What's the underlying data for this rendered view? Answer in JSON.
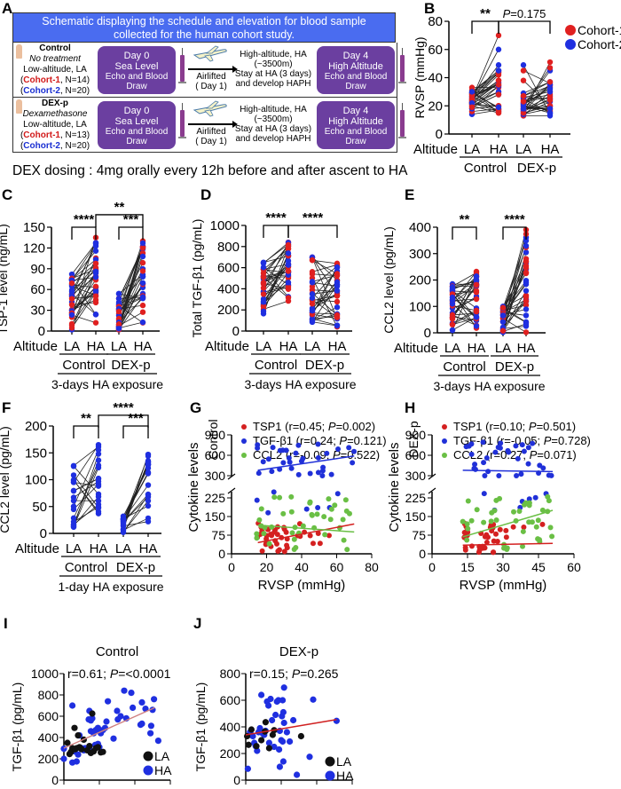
{
  "panel_labels": [
    "A",
    "B",
    "C",
    "D",
    "E",
    "F",
    "G",
    "H",
    "I",
    "J"
  ],
  "schematic": {
    "title_line1": "Schematic displaying the schedule and elevation for blood sample",
    "title_line2": "collected for the human cohort study.",
    "rows": [
      {
        "group": "Control",
        "treatment": "No treatment",
        "location": "Low-altitude, LA",
        "cohort1_label": "Cohort-1",
        "cohort1_n": ", N=14)",
        "cohort2_label": "Cohort-2",
        "cohort2_n": ", N=20)"
      },
      {
        "group": "DEX-p",
        "treatment": "Dexamethasone",
        "location": "Low-altitude, LA",
        "cohort1_label": "Cohort-1",
        "cohort1_n": ", N=13)",
        "cohort2_label": "Cohort-2",
        "cohort2_n": ", N=20)"
      }
    ],
    "box1": {
      "l1": "Day 0",
      "l2": "Sea Level",
      "l3": "Echo and Blood",
      "l4": "Draw"
    },
    "transport": {
      "l1": "Airlifted",
      "l2": "( Day 1)"
    },
    "ha": {
      "l1": "High-altitude, HA",
      "l2": "(~3500m)",
      "l3": "Stay at HA (3 days)",
      "l4": "and develop  HAPH"
    },
    "box2": {
      "l1": "Day 4",
      "l2": "High Altitude",
      "l3": "Echo and Blood",
      "l4": "Draw"
    },
    "dex_dosing": "DEX dosing : 4mg orally every 12h before and after ascent to HA",
    "colors": {
      "banner": "#4a6cf0",
      "box": "#6b3fa0",
      "cohort1": "#d21a1a",
      "cohort2": "#1a2fd2"
    }
  },
  "chart_data": [
    {
      "panel": "B",
      "type": "scatter-paired",
      "ylabel": "RVSP (mmHg)",
      "ylim": [
        0,
        80
      ],
      "yticks": [
        0,
        20,
        40,
        60,
        80
      ],
      "xlabel_prefix": "Altitude",
      "categories": [
        "LA",
        "HA",
        "LA",
        "HA"
      ],
      "groups": [
        "Control",
        "DEX-p"
      ],
      "footer": "",
      "legend": [
        {
          "name": "Cohort-1",
          "color": "#e02020"
        },
        {
          "name": "Cohort-2",
          "color": "#1f2fe0"
        }
      ],
      "annotations": [
        {
          "text": "**",
          "from": 0,
          "to": 1,
          "level": 80
        },
        {
          "text": "P=0.175",
          "from": 1,
          "to": 3,
          "level": 80,
          "italic_prefix": "P"
        }
      ],
      "pairs_control": [
        [
          14,
          17
        ],
        [
          16,
          18
        ],
        [
          18,
          20
        ],
        [
          19,
          28
        ],
        [
          20,
          30
        ],
        [
          21,
          34
        ],
        [
          22,
          37
        ],
        [
          23,
          38
        ],
        [
          24,
          44
        ],
        [
          25,
          60
        ],
        [
          25,
          70
        ],
        [
          22,
          36
        ],
        [
          27,
          16
        ],
        [
          28,
          44
        ],
        [
          30,
          18
        ],
        [
          29,
          45
        ],
        [
          33,
          33
        ],
        [
          26,
          35
        ],
        [
          24,
          49
        ],
        [
          22,
          16
        ],
        [
          21,
          20
        ],
        [
          18,
          34
        ],
        [
          20,
          15
        ],
        [
          24,
          42
        ],
        [
          26,
          36
        ],
        [
          27,
          43
        ],
        [
          23,
          17
        ],
        [
          29,
          19
        ],
        [
          31,
          15
        ],
        [
          25,
          38
        ],
        [
          22,
          30
        ],
        [
          19,
          28
        ],
        [
          28,
          35
        ],
        [
          30,
          45
        ]
      ],
      "pairs_dex": [
        [
          13,
          13
        ],
        [
          14,
          18
        ],
        [
          15,
          20
        ],
        [
          16,
          25
        ],
        [
          17,
          27
        ],
        [
          18,
          35
        ],
        [
          19,
          45
        ],
        [
          20,
          47
        ],
        [
          21,
          33
        ],
        [
          22,
          16
        ],
        [
          25,
          15
        ],
        [
          13,
          30
        ],
        [
          14,
          23
        ],
        [
          45,
          36
        ],
        [
          49,
          14
        ],
        [
          38,
          20
        ],
        [
          29,
          37
        ],
        [
          27,
          34
        ],
        [
          26,
          25
        ],
        [
          20,
          17
        ],
        [
          18,
          19
        ],
        [
          17,
          24
        ],
        [
          16,
          35
        ],
        [
          15,
          51
        ],
        [
          22,
          35
        ],
        [
          24,
          28
        ],
        [
          26,
          30
        ],
        [
          19,
          20
        ],
        [
          20,
          15
        ],
        [
          27,
          37
        ],
        [
          21,
          32
        ],
        [
          23,
          26
        ],
        [
          18,
          18
        ]
      ]
    },
    {
      "panel": "C",
      "type": "scatter-paired",
      "ylabel": "TSP-1 level (ng/mL)",
      "ylim": [
        0,
        150
      ],
      "yticks": [
        0,
        30,
        60,
        90,
        120,
        150
      ],
      "xlabel_prefix": "Altitude",
      "categories": [
        "LA",
        "HA",
        "LA",
        "HA"
      ],
      "groups": [
        "Control",
        "DEX-p"
      ],
      "footer": "3-days HA exposure",
      "annotations": [
        {
          "text": "****",
          "from": 0,
          "to": 1,
          "level": 150
        },
        {
          "text": "***",
          "from": 2,
          "to": 3,
          "level": 150
        },
        {
          "text": "**",
          "from": 1,
          "to": 3,
          "level": 168
        }
      ],
      "n_control": 34,
      "n_dex": 33,
      "la_control_range": [
        2,
        82
      ],
      "ha_control_range": [
        12,
        135
      ],
      "la_dex_range": [
        2,
        54
      ],
      "ha_dex_range": [
        12,
        130
      ]
    },
    {
      "panel": "D",
      "type": "scatter-paired",
      "ylabel": "Total TGF-β1 (pg/mL)",
      "ylim": [
        0,
        1000
      ],
      "yticks": [
        0,
        200,
        400,
        600,
        800,
        1000
      ],
      "xlabel_prefix": "Altitude",
      "categories": [
        "LA",
        "HA",
        "LA",
        "HA"
      ],
      "groups": [
        "Control",
        "DEX-p"
      ],
      "footer": "3-days HA exposure",
      "annotations": [
        {
          "text": "****",
          "from": 0,
          "to": 1,
          "level": 1000
        },
        {
          "text": "****",
          "from": 1,
          "to": 3,
          "level": 1000
        }
      ],
      "n_control": 34,
      "n_dex": 33,
      "la_control_range": [
        165,
        650
      ],
      "ha_control_range": [
        285,
        840
      ],
      "la_dex_range": [
        85,
        700
      ],
      "ha_dex_range": [
        40,
        640
      ]
    },
    {
      "panel": "E",
      "type": "scatter-paired",
      "ylabel": "CCL2 level (pg/mL)",
      "ylim": [
        0,
        400
      ],
      "yticks": [
        0,
        100,
        200,
        300,
        400
      ],
      "xlabel_prefix": "Altitude",
      "categories": [
        "LA",
        "HA",
        "LA",
        "HA"
      ],
      "groups": [
        "Control",
        "DEX-p"
      ],
      "footer": "3-days HA exposure",
      "annotations": [
        {
          "text": "**",
          "from": 0,
          "to": 1,
          "level": 400
        },
        {
          "text": "****",
          "from": 2,
          "to": 3,
          "level": 400
        }
      ],
      "n_control": 34,
      "n_dex": 33,
      "la_control_range": [
        10,
        185
      ],
      "ha_control_range": [
        18,
        232
      ],
      "la_dex_range": [
        2,
        100
      ],
      "ha_dex_range": [
        2,
        390
      ]
    },
    {
      "panel": "F",
      "type": "scatter-paired",
      "ylabel": "CCL2 level (pg/mL)",
      "ylim": [
        0,
        200
      ],
      "yticks": [
        0,
        50,
        100,
        150,
        200
      ],
      "xlabel_prefix": "Altitude",
      "categories": [
        "LA",
        "HA",
        "LA",
        "HA"
      ],
      "groups": [
        "Control",
        "DEX-p"
      ],
      "footer": "1-day HA exposure",
      "annotations": [
        {
          "text": "**",
          "from": 0,
          "to": 1,
          "level": 200
        },
        {
          "text": "***",
          "from": 2,
          "to": 3,
          "level": 200
        },
        {
          "text": "****",
          "from": 1,
          "to": 3,
          "level": 220
        }
      ],
      "n_control": 20,
      "n_dex": 20,
      "single_color": "#1f2fe0",
      "la_control_range": [
        12,
        126
      ],
      "ha_control_range": [
        37,
        165
      ],
      "la_dex_range": [
        2,
        32
      ],
      "ha_dex_range": [
        22,
        147
      ]
    },
    {
      "panel": "G",
      "type": "scatter-broken-axis",
      "side_label": "Control",
      "ylabel": "Cytokine levels",
      "xlabel": "RVSP (mmHg)",
      "xlim": [
        0,
        80
      ],
      "xticks": [
        0,
        20,
        40,
        60,
        80
      ],
      "yticks_low": [
        0,
        75,
        150,
        225
      ],
      "yticks_high": [
        300,
        600,
        900
      ],
      "series": [
        {
          "name": "TSP1",
          "r": "0.45",
          "p": "0.002",
          "color": "#d42020",
          "fit": [
            [
              15,
              45
            ],
            [
              70,
              120
            ]
          ]
        },
        {
          "name": "TGF-β1",
          "r": "0.24",
          "p": "0.121",
          "color": "#2030d8",
          "fit": [
            [
              15,
              380
            ],
            [
              70,
              590
            ]
          ]
        },
        {
          "name": "CCL2",
          "r": "-0.09",
          "p": "0.522",
          "color": "#6abf45",
          "fit": [
            [
              15,
              115
            ],
            [
              70,
              88
            ]
          ]
        }
      ]
    },
    {
      "panel": "H",
      "type": "scatter-broken-axis",
      "side_label": "DEX-p",
      "ylabel": "Cytokine levels",
      "xlabel": "RVSP (mmHg)",
      "xlim": [
        0,
        60
      ],
      "xticks": [
        0,
        15,
        30,
        45,
        60
      ],
      "yticks_low": [
        0,
        75,
        150,
        225
      ],
      "yticks_high": [
        300,
        600,
        900
      ],
      "series": [
        {
          "name": "TSP1",
          "r": "0.10",
          "p": "0.501",
          "color": "#d42020",
          "fit": [
            [
              13,
              35
            ],
            [
              51,
              42
            ]
          ]
        },
        {
          "name": "TGF-β1",
          "r": "-0.05",
          "p": "0.728",
          "color": "#2030d8",
          "fit": [
            [
              13,
              380
            ],
            [
              51,
              360
            ]
          ]
        },
        {
          "name": "CCL2",
          "r": "0.27",
          "p": "0.071",
          "color": "#6abf45",
          "fit": [
            [
              13,
              68
            ],
            [
              51,
              175
            ]
          ]
        }
      ]
    },
    {
      "panel": "I",
      "type": "scatter",
      "title": "Control",
      "stat": "r=0.61; P=<0.0001",
      "ylabel": "TGF-β1 (pg/mL)",
      "xlabel": "TSP1 (ng/mL)",
      "xlim": [
        0,
        150
      ],
      "xticks": [
        0,
        50,
        100,
        150
      ],
      "ylim": [
        0,
        1000
      ],
      "yticks": [
        0,
        200,
        400,
        600,
        800,
        1000
      ],
      "fit": [
        [
          0,
          300
        ],
        [
          128,
          680
        ]
      ],
      "fit_color": "#d08080",
      "legend": [
        {
          "name": "LA",
          "color": "#111111"
        },
        {
          "name": "HA",
          "color": "#1f2fe0"
        }
      ],
      "points_LA": [
        [
          5,
          350
        ],
        [
          8,
          245
        ],
        [
          12,
          300
        ],
        [
          15,
          490
        ],
        [
          18,
          300
        ],
        [
          20,
          420
        ],
        [
          22,
          310
        ],
        [
          25,
          290
        ],
        [
          28,
          380
        ],
        [
          33,
          280
        ],
        [
          36,
          320
        ],
        [
          38,
          255
        ],
        [
          40,
          625
        ],
        [
          42,
          270
        ],
        [
          45,
          300
        ],
        [
          48,
          310
        ],
        [
          52,
          260
        ],
        [
          55,
          265
        ],
        [
          10,
          265
        ],
        [
          16,
          290
        ]
      ],
      "points_HA": [
        [
          0,
          295
        ],
        [
          0,
          200
        ],
        [
          12,
          700
        ],
        [
          12,
          165
        ],
        [
          15,
          270
        ],
        [
          18,
          175
        ],
        [
          20,
          240
        ],
        [
          22,
          420
        ],
        [
          25,
          300
        ],
        [
          28,
          280
        ],
        [
          30,
          300
        ],
        [
          34,
          290
        ],
        [
          35,
          570
        ],
        [
          36,
          650
        ],
        [
          38,
          460
        ],
        [
          38,
          560
        ],
        [
          40,
          580
        ],
        [
          42,
          440
        ],
        [
          45,
          470
        ],
        [
          48,
          490
        ],
        [
          48,
          340
        ],
        [
          50,
          310
        ],
        [
          52,
          440
        ],
        [
          55,
          470
        ],
        [
          58,
          490
        ],
        [
          60,
          550
        ],
        [
          62,
          740
        ],
        [
          70,
          390
        ],
        [
          75,
          650
        ],
        [
          76,
          570
        ],
        [
          80,
          600
        ],
        [
          85,
          840
        ],
        [
          88,
          580
        ],
        [
          95,
          820
        ],
        [
          97,
          680
        ],
        [
          108,
          520
        ],
        [
          110,
          530
        ],
        [
          110,
          730
        ],
        [
          115,
          670
        ],
        [
          122,
          440
        ],
        [
          123,
          510
        ],
        [
          125,
          660
        ],
        [
          127,
          760
        ],
        [
          133,
          370
        ],
        [
          36,
          290
        ],
        [
          44,
          330
        ]
      ]
    },
    {
      "panel": "J",
      "type": "scatter",
      "title": "DEX-p",
      "stat": "r=0.15; P=0.265",
      "ylabel": "TGF-β1 (pg/mL)",
      "xlabel": "TSP1 (ng/mL)",
      "xlim": [
        0,
        150
      ],
      "xticks": [
        0,
        50,
        100,
        150
      ],
      "ylim": [
        0,
        800
      ],
      "yticks": [
        0,
        200,
        400,
        600,
        800
      ],
      "fit": [
        [
          0,
          340
        ],
        [
          128,
          455
        ]
      ],
      "fit_color": "#d02020",
      "legend": [
        {
          "name": "LA",
          "color": "#111111"
        },
        {
          "name": "HA",
          "color": "#1f2fe0"
        }
      ],
      "points_LA": [
        [
          2,
          330
        ],
        [
          4,
          265
        ],
        [
          8,
          380
        ],
        [
          15,
          255
        ],
        [
          22,
          300
        ],
        [
          27,
          365
        ],
        [
          28,
          435
        ],
        [
          33,
          240
        ],
        [
          38,
          340
        ],
        [
          40,
          375
        ],
        [
          78,
          330
        ]
      ],
      "points_HA": [
        [
          3,
          85
        ],
        [
          6,
          360
        ],
        [
          8,
          340
        ],
        [
          10,
          330
        ],
        [
          12,
          280
        ],
        [
          14,
          255
        ],
        [
          16,
          220
        ],
        [
          18,
          360
        ],
        [
          20,
          390
        ],
        [
          22,
          640
        ],
        [
          24,
          350
        ],
        [
          26,
          340
        ],
        [
          28,
          370
        ],
        [
          30,
          590
        ],
        [
          32,
          560
        ],
        [
          33,
          280
        ],
        [
          35,
          610
        ],
        [
          37,
          450
        ],
        [
          40,
          250
        ],
        [
          42,
          490
        ],
        [
          44,
          590
        ],
        [
          46,
          600
        ],
        [
          47,
          230
        ],
        [
          48,
          100
        ],
        [
          48,
          370
        ],
        [
          50,
          300
        ],
        [
          51,
          480
        ],
        [
          52,
          600
        ],
        [
          52,
          290
        ],
        [
          53,
          140
        ],
        [
          53,
          510
        ],
        [
          54,
          430
        ],
        [
          54,
          695
        ],
        [
          58,
          360
        ],
        [
          62,
          290
        ],
        [
          67,
          450
        ],
        [
          72,
          40
        ],
        [
          90,
          175
        ],
        [
          95,
          605
        ],
        [
          128,
          445
        ]
      ]
    }
  ]
}
